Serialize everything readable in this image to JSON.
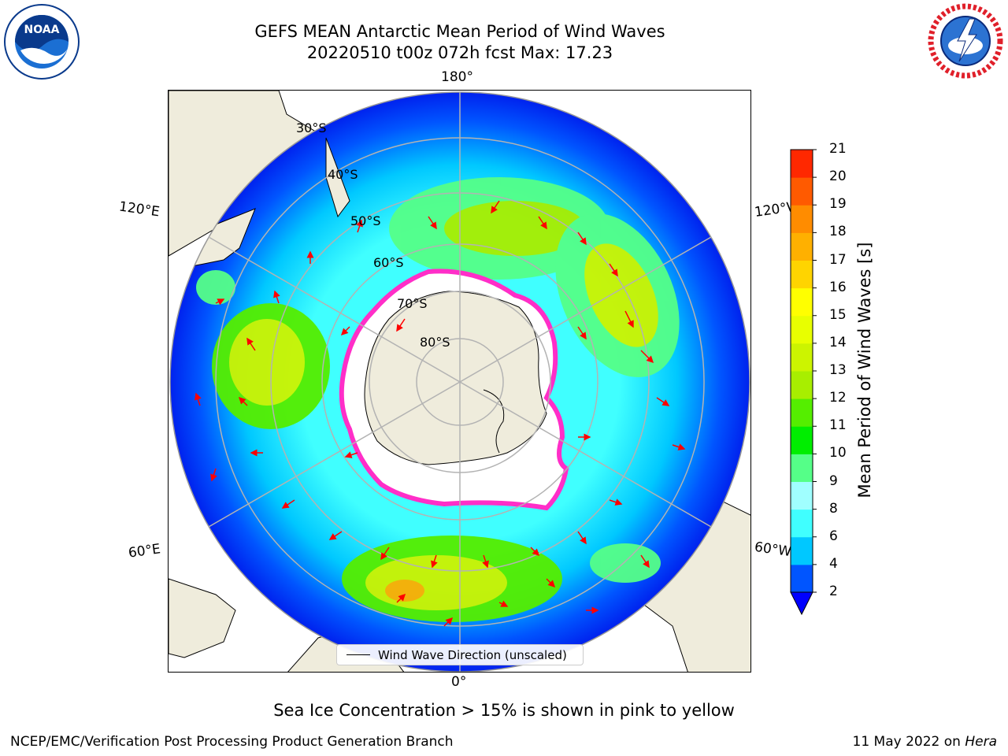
{
  "title": {
    "line1": "GEFS MEAN Antarctic Mean Period of Wind Waves",
    "line2": "20220510 t00z 072h fcst   Max: 17.23"
  },
  "logos": {
    "left": "NOAA",
    "right_text": "NATIONAL WEATHER SERVICE"
  },
  "map": {
    "projection": "south-polar-stereographic",
    "longitude_labels": {
      "top": "180°",
      "bottom": "0°",
      "upper_left": "120°E",
      "upper_right": "120°W",
      "lower_left": "60°E",
      "lower_right": "60°W"
    },
    "latitude_labels": [
      "30°S",
      "40°S",
      "50°S",
      "60°S",
      "70°S",
      "80°S"
    ],
    "colors": {
      "land": "#efecdc",
      "ice_edge": "#ff2ec8",
      "arrow": "#ff0000",
      "grid": "#b3b3b3"
    }
  },
  "legend": {
    "label": "Wind Wave Direction (unscaled)"
  },
  "colorbar": {
    "label": "Mean Period of Wind Waves [s]",
    "ticks": [
      "2",
      "4",
      "6",
      "8",
      "9",
      "10",
      "11",
      "12",
      "13",
      "14",
      "15",
      "16",
      "17",
      "18",
      "19",
      "20",
      "21"
    ],
    "colors": [
      "#0055ff",
      "#00c8ff",
      "#40ffff",
      "#a0ffff",
      "#55ff88",
      "#00ee00",
      "#55ee00",
      "#a8ee00",
      "#ccf400",
      "#e8ff00",
      "#ffff00",
      "#ffd400",
      "#ffb000",
      "#ff8c00",
      "#ff5a00",
      "#ff2800",
      "#ff0000"
    ],
    "under_color": "#0000ff"
  },
  "caption": "Sea Ice Concentration > 15% is shown in pink to yellow",
  "footer": {
    "left": "NCEP/EMC/Verification Post Processing Product Generation Branch",
    "right_date": "11 May 2022 on ",
    "right_machine": "Hera"
  }
}
